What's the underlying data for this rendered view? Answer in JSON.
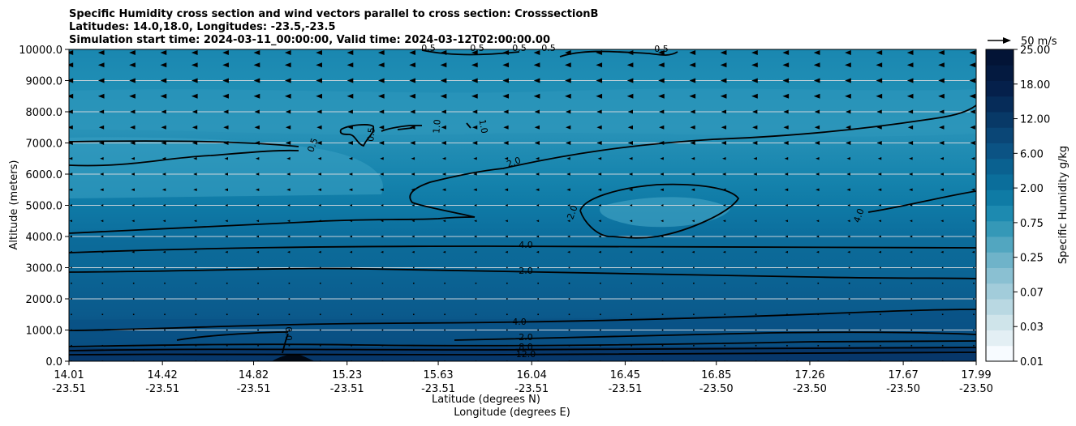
{
  "chart_data": {
    "type": "contour",
    "title_lines": [
      "Specific Humidity cross section and wind vectors parallel to cross section: CrosssectionB",
      "Latitudes: 14.0,18.0, Longitudes: -23.5,-23.5",
      "Simulation start time: 2024-03-11_00:00:00, Valid time: 2024-03-12T02:00:00.00"
    ],
    "xlabel": "Latitude (degrees N)",
    "xlabel2": "Longitude (degrees E)",
    "ylabel": "Altitude (meters)",
    "ylim": [
      0,
      10000
    ],
    "x_ticks": [
      {
        "lat": "14.01",
        "lon": "-23.51"
      },
      {
        "lat": "14.42",
        "lon": "-23.51"
      },
      {
        "lat": "14.82",
        "lon": "-23.51"
      },
      {
        "lat": "15.23",
        "lon": "-23.51"
      },
      {
        "lat": "15.63",
        "lon": "-23.51"
      },
      {
        "lat": "16.04",
        "lon": "-23.51"
      },
      {
        "lat": "16.45",
        "lon": "-23.51"
      },
      {
        "lat": "16.85",
        "lon": "-23.50"
      },
      {
        "lat": "17.26",
        "lon": "-23.50"
      },
      {
        "lat": "17.67",
        "lon": "-23.50"
      },
      {
        "lat": "17.99",
        "lon": "-23.50"
      }
    ],
    "y_ticks": [
      "0.0",
      "1000.0",
      "2000.0",
      "3000.0",
      "4000.0",
      "5000.0",
      "6000.0",
      "7000.0",
      "8000.0",
      "9000.0",
      "10000.0"
    ],
    "colorbar": {
      "label": "Specific Humidity g/kg",
      "ticks": [
        "0.01",
        "0.03",
        "0.07",
        "0.25",
        "0.75",
        "2.00",
        "6.00",
        "12.00",
        "18.00",
        "25.00"
      ],
      "colors": [
        "#f7fbff",
        "#e3eff4",
        "#cfe4ea",
        "#b9d8e2",
        "#a2ccda",
        "#8ac0d2",
        "#6fb3c9",
        "#52a6c0",
        "#3598b7",
        "#1d8ab0",
        "#0f7ba5",
        "#0b6e9b",
        "#0a6190",
        "#0b5384",
        "#0a4676",
        "#083967",
        "#062c59",
        "#05204b",
        "#041a40",
        "#031436"
      ]
    },
    "wind_reference": {
      "label": "50 m/s",
      "value": 50
    },
    "contour_labels": [
      "0.5",
      "0.5",
      "0.5",
      "0.5",
      "0.5",
      "0.5",
      "0.5",
      "1.0",
      "1.0",
      "2.0",
      "2.0",
      "4.0",
      "4.0",
      "2.0",
      "4.0",
      "8.0",
      "12.0",
      "2.0",
      "0.0"
    ]
  }
}
